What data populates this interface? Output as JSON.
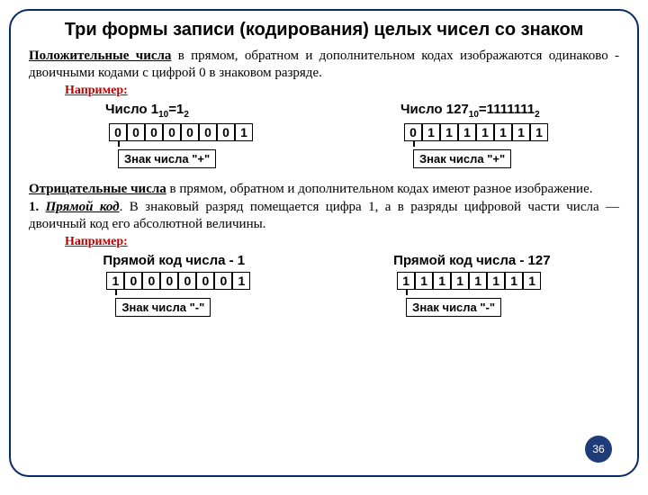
{
  "title": "Три формы записи (кодирования) целых чисел со знаком",
  "para1_term": "Положительные числа",
  "para1_rest": " в прямом, обратном и дополнительном кодах изображаются одинаково - двоичными кодами с цифрой 0 в знаковом разряде.",
  "example_label": "Например:",
  "ex1": {
    "left": {
      "label_html": "Число 1<sub>10</sub>=1<sub>2</sub>",
      "bits": [
        "0",
        "0",
        "0",
        "0",
        "0",
        "0",
        "0",
        "1"
      ],
      "sign": "Знак числа \"+\""
    },
    "right": {
      "label_html": "Число 127<sub>10</sub>=1111111<sub>2</sub>",
      "bits": [
        "0",
        "1",
        "1",
        "1",
        "1",
        "1",
        "1",
        "1"
      ],
      "sign": "Знак числа \"+\""
    }
  },
  "para2_term": "Отрицательные числа",
  "para2_rest": " в прямом, обратном и дополнительном кодах имеют разное изображение.",
  "para3_num": "1. ",
  "para3_term": "Прямой код",
  "para3_rest": ". В знаковый разряд помещается цифра 1, а в разряды цифровой части числа — двоичный код его абсолютной величины.",
  "ex2": {
    "left": {
      "label": "Прямой код числа - 1",
      "bits": [
        "1",
        "0",
        "0",
        "0",
        "0",
        "0",
        "0",
        "1"
      ],
      "sign": "Знак числа \"-\""
    },
    "right": {
      "label": "Прямой код числа - 127",
      "bits": [
        "1",
        "1",
        "1",
        "1",
        "1",
        "1",
        "1",
        "1"
      ],
      "sign": "Знак числа \"-\""
    }
  },
  "page": "36"
}
